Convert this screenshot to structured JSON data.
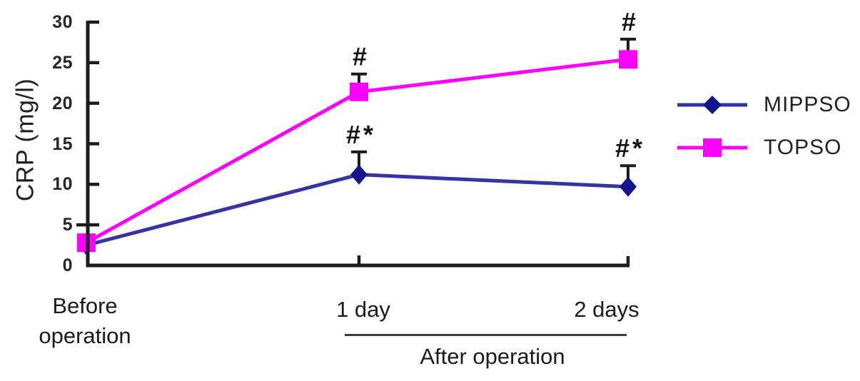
{
  "chart_data": {
    "type": "line",
    "title": "",
    "ylabel": "CRP (mg/l)",
    "xlabel": "",
    "ylim": [
      0,
      30
    ],
    "yticks": [
      0,
      5,
      10,
      15,
      20,
      25,
      30
    ],
    "categories": [
      "Before operation",
      "1 day",
      "2 days"
    ],
    "x_group_label": "After operation",
    "grid": false,
    "legend_position": "right",
    "axis_color": "#1c1c1c",
    "series": [
      {
        "name": "MIPPSO",
        "marker": "diamond",
        "color": "#3434A4",
        "marker_color": "#14148C",
        "values": [
          2.5,
          11.2,
          9.7
        ],
        "errors_up": [
          0,
          2.8,
          2.6
        ],
        "annotations": [
          "",
          "#*",
          "#*"
        ]
      },
      {
        "name": "TOPSO",
        "marker": "square",
        "color": "#FB00FB",
        "marker_color": "#FB00FB",
        "values": [
          2.8,
          21.4,
          25.4
        ],
        "errors_up": [
          0,
          2.2,
          2.5
        ],
        "annotations": [
          "",
          "#",
          "#"
        ]
      }
    ]
  }
}
